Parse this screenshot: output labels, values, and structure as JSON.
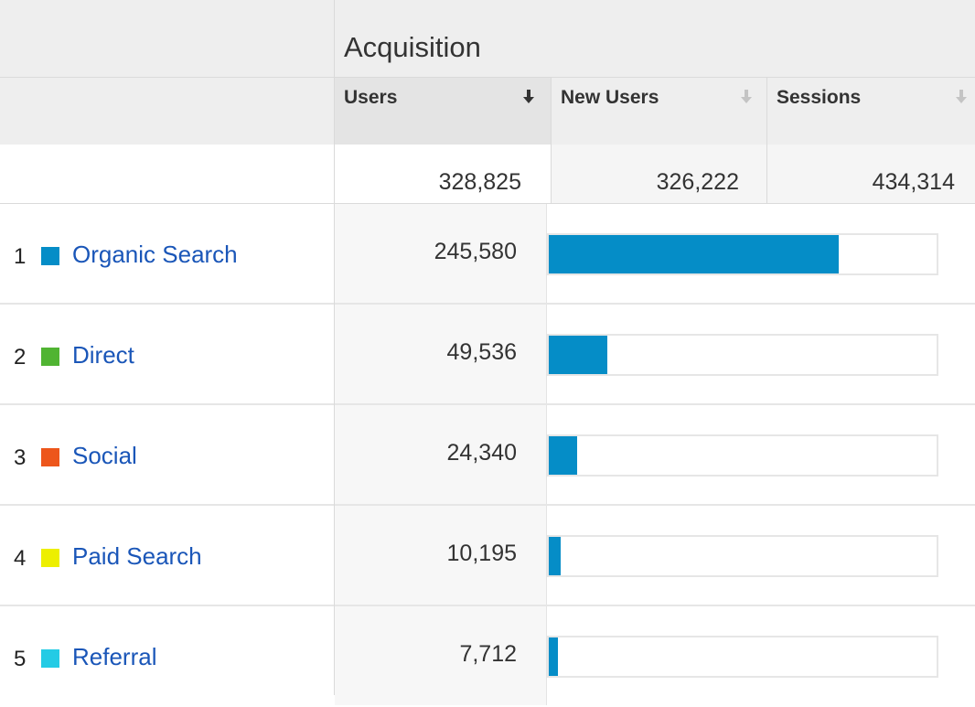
{
  "header": {
    "group_title": "Acquisition",
    "columns": [
      {
        "label": "Users",
        "sorted": true
      },
      {
        "label": "New Users",
        "sorted": false
      },
      {
        "label": "Sessions",
        "sorted": false
      }
    ]
  },
  "totals": {
    "users": "328,825",
    "new_users": "326,222",
    "sessions": "434,314"
  },
  "rows": [
    {
      "rank": "1",
      "name": "Organic Search",
      "users": "245,580",
      "users_share": 0.7469,
      "color": "#058dc7"
    },
    {
      "rank": "2",
      "name": "Direct",
      "users": "49,536",
      "users_share": 0.1506,
      "color": "#50b432"
    },
    {
      "rank": "3",
      "name": "Social",
      "users": "24,340",
      "users_share": 0.074,
      "color": "#ed561b"
    },
    {
      "rank": "4",
      "name": "Paid Search",
      "users": "10,195",
      "users_share": 0.031,
      "color": "#edef00"
    },
    {
      "rank": "5",
      "name": "Referral",
      "users": "7,712",
      "users_share": 0.0235,
      "color": "#24cbe5"
    }
  ],
  "colors": {
    "bar": "#058dc7",
    "link": "#1a56b8"
  }
}
